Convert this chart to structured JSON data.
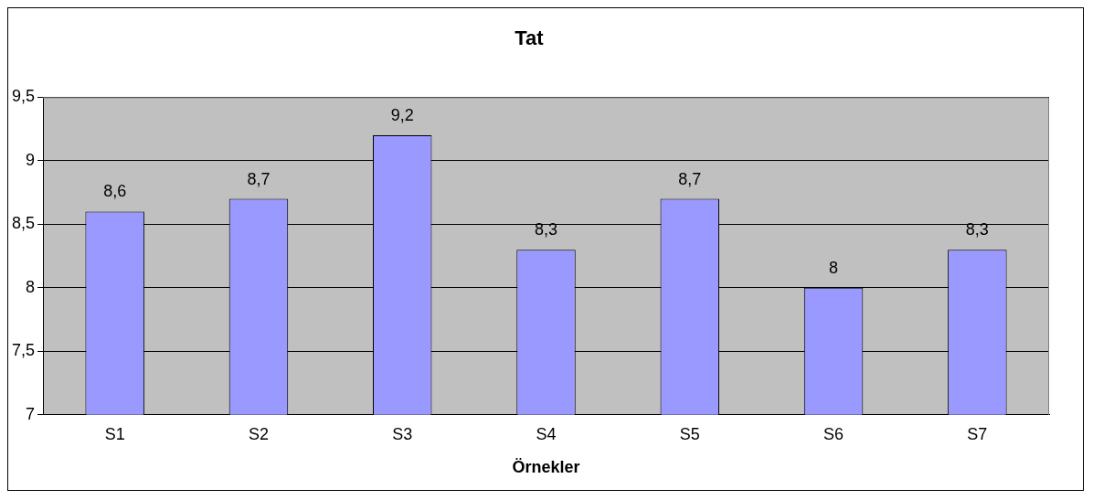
{
  "chart_data": {
    "type": "bar",
    "title": "Tat",
    "xlabel": "Örnekler",
    "categories": [
      "S1",
      "S2",
      "S3",
      "S4",
      "S5",
      "S6",
      "S7"
    ],
    "values": [
      8.6,
      8.7,
      9.2,
      8.3,
      8.7,
      8,
      8.3
    ],
    "value_labels": [
      "8,6",
      "8,7",
      "9,2",
      "8,3",
      "8,7",
      "8",
      "8,3"
    ],
    "color": "#9999ff",
    "ylim": [
      7,
      9.5
    ],
    "yticks": [
      7,
      {
        "value": 7.5,
        "label": "7,5"
      },
      8,
      {
        "value": 8.5,
        "label": "8,5"
      },
      9,
      {
        "value": 9.5,
        "label": "9,5"
      }
    ],
    "grid": "y",
    "legend": false
  }
}
